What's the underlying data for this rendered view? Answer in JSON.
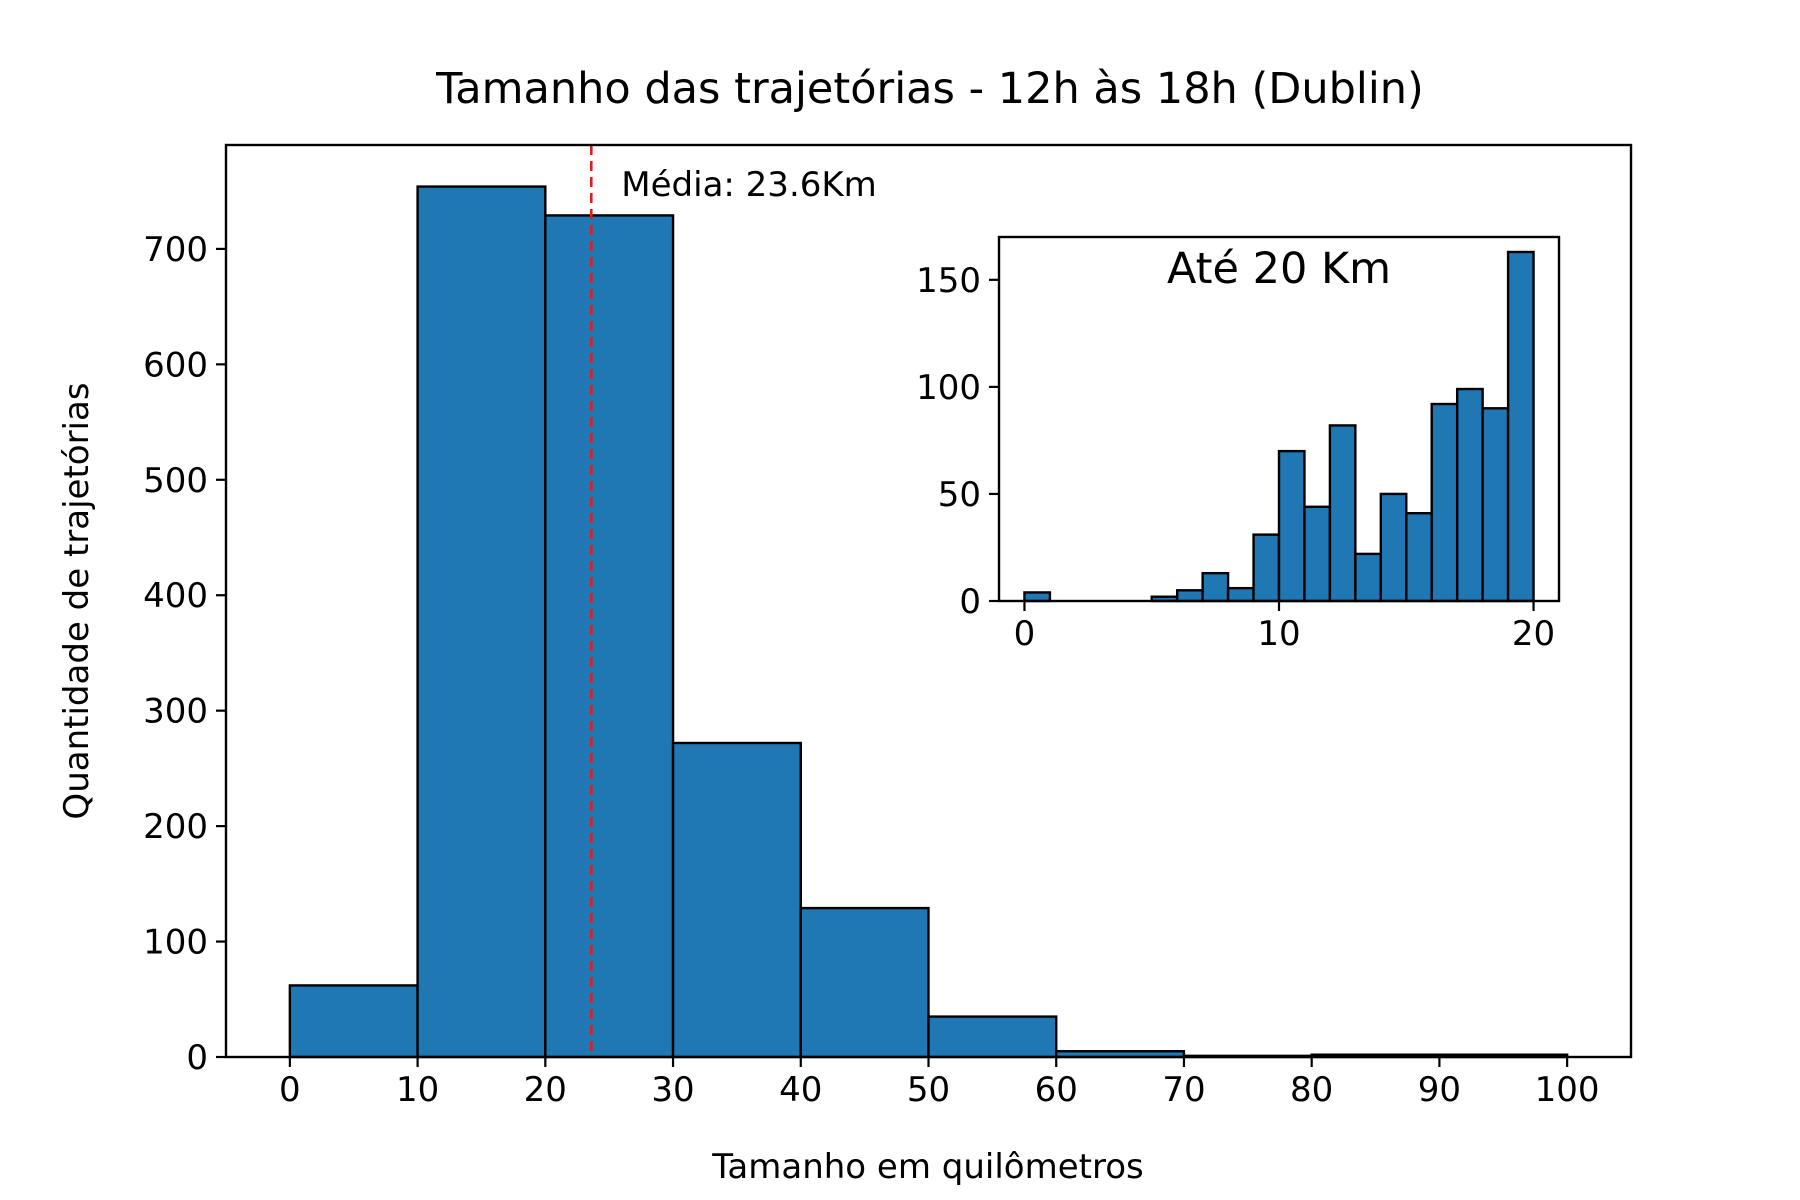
{
  "chart_data": [
    {
      "type": "bar",
      "title": "Tamanho das trajetórias - 12h às 18h (Dublin)",
      "xlabel": "Tamanho em quilômetros",
      "ylabel": "Quantidade de trajetórias",
      "xlim": [
        -5,
        105
      ],
      "ylim": [
        0,
        790
      ],
      "xticks": [
        "0",
        "10",
        "20",
        "30",
        "40",
        "50",
        "60",
        "70",
        "80",
        "90",
        "100"
      ],
      "yticks": [
        "0",
        "100",
        "200",
        "300",
        "400",
        "500",
        "600",
        "700"
      ],
      "bins": [
        {
          "x0": 0,
          "x1": 10,
          "count": 62
        },
        {
          "x0": 10,
          "x1": 20,
          "count": 754
        },
        {
          "x0": 20,
          "x1": 30,
          "count": 729
        },
        {
          "x0": 30,
          "x1": 40,
          "count": 272
        },
        {
          "x0": 40,
          "x1": 50,
          "count": 129
        },
        {
          "x0": 50,
          "x1": 60,
          "count": 35
        },
        {
          "x0": 60,
          "x1": 70,
          "count": 5
        },
        {
          "x0": 70,
          "x1": 80,
          "count": 1
        },
        {
          "x0": 80,
          "x1": 90,
          "count": 2
        },
        {
          "x0": 90,
          "x1": 100,
          "count": 2
        }
      ],
      "bar_color": "#1f77b4",
      "mean": {
        "value": 23.6,
        "label": "Média: 23.6Km",
        "color": "#e41a1c",
        "style": "dashed"
      },
      "grid": false,
      "legend": "none"
    },
    {
      "type": "bar",
      "title": "Até 20 Km",
      "xlim": [
        -1,
        21
      ],
      "ylim": [
        0,
        170
      ],
      "xticks": [
        "0",
        "10",
        "20"
      ],
      "yticks": [
        "0",
        "50",
        "100",
        "150"
      ],
      "bins": [
        {
          "x0": 0,
          "x1": 1,
          "count": 4
        },
        {
          "x0": 1,
          "x1": 2,
          "count": 0
        },
        {
          "x0": 2,
          "x1": 3,
          "count": 0
        },
        {
          "x0": 3,
          "x1": 4,
          "count": 0
        },
        {
          "x0": 4,
          "x1": 5,
          "count": 0
        },
        {
          "x0": 5,
          "x1": 6,
          "count": 2
        },
        {
          "x0": 6,
          "x1": 7,
          "count": 5
        },
        {
          "x0": 7,
          "x1": 8,
          "count": 13
        },
        {
          "x0": 8,
          "x1": 9,
          "count": 6
        },
        {
          "x0": 9,
          "x1": 10,
          "count": 31
        },
        {
          "x0": 10,
          "x1": 11,
          "count": 70
        },
        {
          "x0": 11,
          "x1": 12,
          "count": 44
        },
        {
          "x0": 12,
          "x1": 13,
          "count": 82
        },
        {
          "x0": 13,
          "x1": 14,
          "count": 22
        },
        {
          "x0": 14,
          "x1": 15,
          "count": 50
        },
        {
          "x0": 15,
          "x1": 16,
          "count": 41
        },
        {
          "x0": 16,
          "x1": 17,
          "count": 92
        },
        {
          "x0": 17,
          "x1": 18,
          "count": 99
        },
        {
          "x0": 18,
          "x1": 19,
          "count": 90
        },
        {
          "x0": 19,
          "x1": 20,
          "count": 163
        }
      ],
      "bar_color": "#1f77b4",
      "grid": false,
      "legend": "none",
      "placement": "inset top-right"
    }
  ]
}
